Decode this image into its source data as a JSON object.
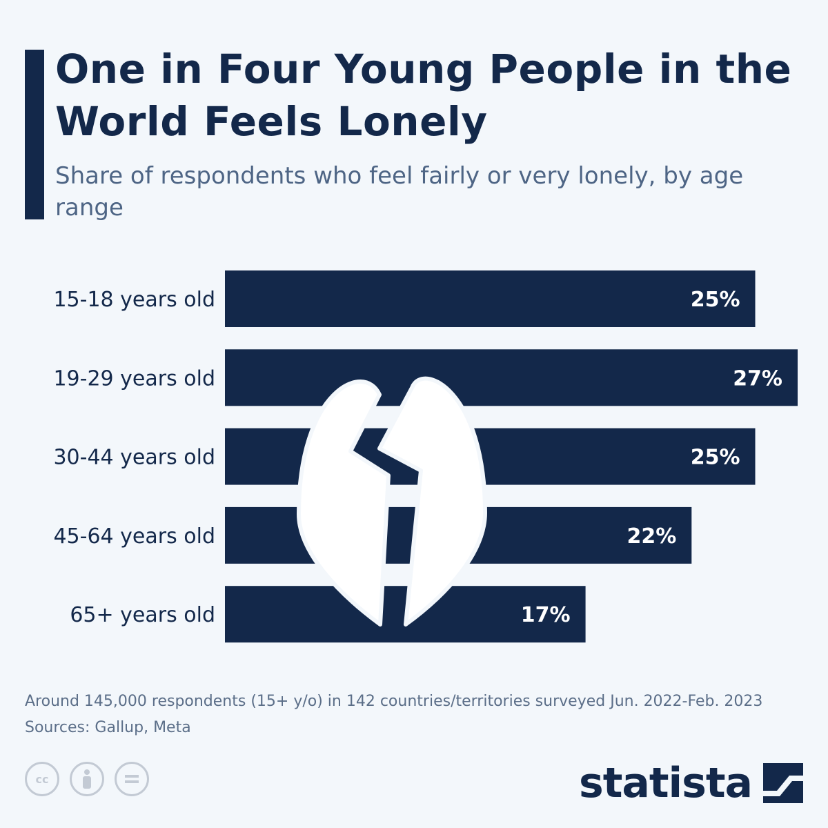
{
  "header": {
    "title": "One in Four Young People in the World Feels Lonely",
    "subtitle": "Share of respondents who feel fairly or very lonely, by age range"
  },
  "chart_data": {
    "type": "bar",
    "orientation": "horizontal",
    "categories": [
      "15-18 years old",
      "19-29 years old",
      "30-44 years old",
      "45-64 years old",
      "65+ years old"
    ],
    "values": [
      25,
      27,
      25,
      22,
      17
    ],
    "value_labels": [
      "25%",
      "27%",
      "25%",
      "22%",
      "17%"
    ],
    "unit": "%",
    "xlim": [
      0,
      27
    ],
    "grid": false,
    "bar_color": "#13284a",
    "decoration": "broken-heart-icon"
  },
  "footer": {
    "note": "Around 145,000 respondents (15+ y/o) in 142 countries/territories surveyed Jun. 2022-Feb. 2023",
    "sources": "Sources: Gallup, Meta",
    "license_icons": [
      "cc-icon",
      "attribution-icon",
      "no-derivatives-icon"
    ],
    "license_glyphs": [
      "cc",
      "",
      ""
    ],
    "brand": "statista"
  },
  "colors": {
    "background": "#f3f7fb",
    "primary": "#13284a",
    "subtitle": "#4e6585",
    "muted": "#c3cad4"
  }
}
